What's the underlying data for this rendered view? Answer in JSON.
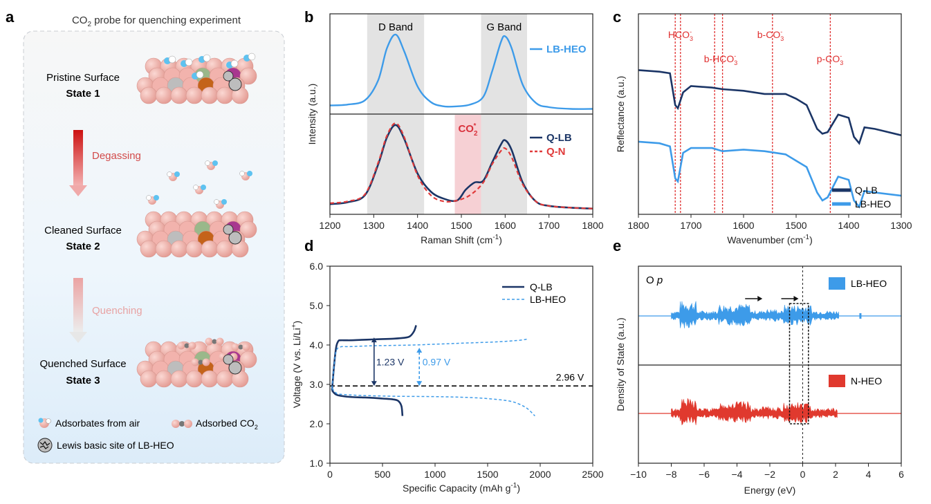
{
  "panels": {
    "a": "a",
    "b": "b",
    "c": "c",
    "d": "d",
    "e": "e"
  },
  "colors": {
    "dark": "#1b3566",
    "light": "#3d9be9",
    "red": "#e03a3a",
    "band_gray": "#e3e3e3",
    "band_pink": "#f6d0d4",
    "ir_line": "#e03030",
    "sphere": "#f2b3ad"
  },
  "panel_a": {
    "title_pre": "CO",
    "title_sub": "2",
    "title_post": " probe for quenching experiment",
    "state1_name": "Pristine Surface",
    "state1_label": "State 1",
    "degassing": "Degassing",
    "state2_name": "Cleaned Surface",
    "state2_label": "State 2",
    "quenching": "Quenching",
    "state3_name": "Quenched Surface",
    "state3_label": "State 3",
    "legend_air": "Adsorbates from air",
    "legend_co2": "Adsorbed CO",
    "legend_co2_sub": "2",
    "legend_lewis": "Lewis basic site of LB-HEO"
  },
  "chart_data": [
    {
      "id": "b",
      "type": "line",
      "title": "",
      "xlabel_pre": "Raman Shift (cm",
      "xlabel_sup": "-1",
      "xlabel_post": ")",
      "ylabel": "Intensity (a.u.)",
      "xlim": [
        1200,
        1800
      ],
      "xticks": [
        "1200",
        "1300",
        "1400",
        "1500",
        "1600",
        "1700",
        "1800"
      ],
      "bands": [
        {
          "label": "D Band",
          "x0": 1285,
          "x1": 1415
        },
        {
          "label": "G Band",
          "x0": 1545,
          "x1": 1650
        }
      ],
      "co2_band": {
        "label_pre": "CO",
        "label_sub": "2",
        "label_sup": "*",
        "x0": 1485,
        "x1": 1545
      },
      "top_series": [
        {
          "name": "LB-HEO",
          "x": [
            1200,
            1240,
            1280,
            1310,
            1330,
            1350,
            1370,
            1400,
            1430,
            1460,
            1490,
            1520,
            1550,
            1570,
            1590,
            1600,
            1615,
            1640,
            1670,
            1700,
            1750,
            1800
          ],
          "y": [
            0.06,
            0.07,
            0.12,
            0.35,
            0.72,
            0.88,
            0.68,
            0.28,
            0.1,
            0.05,
            0.05,
            0.07,
            0.16,
            0.45,
            0.79,
            0.86,
            0.72,
            0.3,
            0.09,
            0.04,
            0.02,
            0.02
          ]
        }
      ],
      "bottom_series": [
        {
          "name": "Q-LB",
          "x": [
            1200,
            1240,
            1280,
            1310,
            1330,
            1350,
            1370,
            1400,
            1430,
            1460,
            1490,
            1510,
            1530,
            1550,
            1570,
            1590,
            1600,
            1615,
            1640,
            1670,
            1700,
            1750,
            1800
          ],
          "y": [
            0.06,
            0.08,
            0.16,
            0.5,
            0.8,
            0.94,
            0.78,
            0.4,
            0.2,
            0.12,
            0.1,
            0.22,
            0.3,
            0.32,
            0.52,
            0.72,
            0.77,
            0.66,
            0.3,
            0.09,
            0.04,
            0.02,
            0.01
          ]
        },
        {
          "name": "Q-N",
          "x": [
            1200,
            1240,
            1280,
            1310,
            1330,
            1350,
            1370,
            1400,
            1430,
            1460,
            1490,
            1520,
            1550,
            1570,
            1590,
            1600,
            1615,
            1640,
            1670,
            1700,
            1750,
            1800
          ],
          "y": [
            0.07,
            0.09,
            0.17,
            0.52,
            0.82,
            0.96,
            0.8,
            0.38,
            0.16,
            0.09,
            0.1,
            0.16,
            0.3,
            0.5,
            0.65,
            0.68,
            0.58,
            0.28,
            0.09,
            0.04,
            0.02,
            0.01
          ]
        }
      ]
    },
    {
      "id": "c",
      "type": "line",
      "xlabel_pre": "Wavenumber (cm",
      "xlabel_sup": "-1",
      "xlabel_post": ")",
      "ylabel": "Reflectance (a.u.)",
      "xlim": [
        1800,
        1300
      ],
      "xticks": [
        "1800",
        "1700",
        "1600",
        "1500",
        "1400",
        "1300"
      ],
      "markers": [
        {
          "x": 1730,
          "label": "HCO",
          "sub": "3",
          "sup": "-"
        },
        {
          "x": 1720,
          "label": "",
          "sub": "",
          "sup": ""
        },
        {
          "x": 1655,
          "label": "b-HCO",
          "sub": "3",
          "sup": "-"
        },
        {
          "x": 1640,
          "label": "",
          "sub": "",
          "sup": ""
        },
        {
          "x": 1545,
          "label": "b-CO",
          "sub": "3",
          "sup": "-"
        },
        {
          "x": 1435,
          "label": "p-CO",
          "sub": "3",
          "sup": "-"
        }
      ],
      "series": [
        {
          "name": "Q-LB",
          "x": [
            1800,
            1760,
            1740,
            1730,
            1725,
            1715,
            1700,
            1660,
            1640,
            1600,
            1560,
            1520,
            1500,
            1480,
            1460,
            1450,
            1440,
            1420,
            1400,
            1390,
            1380,
            1370,
            1350,
            1300
          ],
          "y": [
            0.82,
            0.81,
            0.8,
            0.6,
            0.58,
            0.68,
            0.72,
            0.71,
            0.7,
            0.69,
            0.67,
            0.67,
            0.64,
            0.6,
            0.45,
            0.42,
            0.43,
            0.54,
            0.52,
            0.4,
            0.36,
            0.46,
            0.45,
            0.41
          ]
        },
        {
          "name": "LB-HEO",
          "x": [
            1800,
            1760,
            1740,
            1730,
            1725,
            1715,
            1700,
            1660,
            1640,
            1600,
            1560,
            1520,
            1500,
            1480,
            1460,
            1450,
            1440,
            1420,
            1400,
            1390,
            1380,
            1370,
            1350,
            1300
          ],
          "y": [
            0.37,
            0.36,
            0.34,
            0.14,
            0.12,
            0.3,
            0.33,
            0.33,
            0.31,
            0.32,
            0.31,
            0.29,
            0.25,
            0.21,
            0.05,
            0.0,
            0.02,
            0.15,
            0.13,
            0.0,
            -0.04,
            0.06,
            0.05,
            0.03
          ]
        }
      ],
      "legend": [
        "Q-LB",
        "LB-HEO"
      ]
    },
    {
      "id": "d",
      "type": "line",
      "xlabel_pre": "Specific Capacity (mAh g",
      "xlabel_sup": "-1",
      "xlabel_post": ")",
      "ylabel_pre": "Voltage (V vs. Li/Li",
      "ylabel_sup": "+",
      "ylabel_post": ")",
      "xlim": [
        0,
        2500
      ],
      "ylim": [
        1.0,
        6.0
      ],
      "xticks": [
        "0",
        "500",
        "1000",
        "1500",
        "2000",
        "2500"
      ],
      "yticks": [
        "1.0",
        "2.0",
        "3.0",
        "4.0",
        "5.0",
        "6.0"
      ],
      "series": [
        {
          "name": "Q-LB",
          "style": "solid",
          "x": [
            20,
            40,
            60,
            80,
            100,
            150,
            200,
            300,
            400,
            500,
            600,
            700,
            760,
            800,
            820
          ],
          "y": [
            2.85,
            3.5,
            3.95,
            4.1,
            4.12,
            4.12,
            4.12,
            4.13,
            4.14,
            4.15,
            4.16,
            4.18,
            4.22,
            4.35,
            4.5
          ],
          "x2": [
            20,
            40,
            60,
            100,
            200,
            300,
            400,
            500,
            600,
            650,
            680,
            690
          ],
          "y2": [
            2.85,
            2.78,
            2.74,
            2.71,
            2.68,
            2.67,
            2.66,
            2.64,
            2.62,
            2.58,
            2.45,
            2.2
          ]
        },
        {
          "name": "LB-HEO",
          "style": "dashed",
          "x": [
            20,
            40,
            60,
            100,
            200,
            400,
            600,
            800,
            1000,
            1200,
            1400,
            1600,
            1800,
            1880
          ],
          "y": [
            2.9,
            3.5,
            3.85,
            3.95,
            3.96,
            3.98,
            3.99,
            4.0,
            4.02,
            4.04,
            4.06,
            4.08,
            4.12,
            4.15
          ],
          "x2": [
            20,
            60,
            100,
            300,
            600,
            1000,
            1300,
            1500,
            1700,
            1800,
            1880,
            1950
          ],
          "y2": [
            2.9,
            2.78,
            2.75,
            2.72,
            2.7,
            2.69,
            2.67,
            2.64,
            2.58,
            2.5,
            2.38,
            2.2
          ]
        }
      ],
      "annotations": {
        "ref_v": 2.96,
        "ref_label": "2.96 V",
        "gap_qlb": "1.23 V",
        "gap_lbheo": "0.97 V",
        "arrow1_x": 420,
        "arrow1_top": 4.19,
        "arrow2_x": 850,
        "arrow2_top": 3.93
      },
      "legend": [
        "Q-LB",
        "LB-HEO"
      ]
    },
    {
      "id": "e",
      "type": "area",
      "xlabel": "Energy (eV)",
      "ylabel": "Density of State (a.u.)",
      "xlim": [
        -10,
        6
      ],
      "xticks": [
        "−10",
        "−8",
        "−6",
        "−4",
        "−2",
        "0",
        "2",
        "4",
        "6"
      ],
      "label_pre": "O ",
      "label_it": "p",
      "series": [
        {
          "name": "LB-HEO",
          "range": [
            -8.0,
            2.2
          ],
          "seed": 7
        },
        {
          "name": "N-HEO",
          "range": [
            -8.0,
            2.1
          ],
          "seed": 13
        }
      ],
      "arrows_eV": [
        -3.0,
        -0.8
      ],
      "box_eV": [
        -0.8,
        0.35
      ]
    }
  ]
}
